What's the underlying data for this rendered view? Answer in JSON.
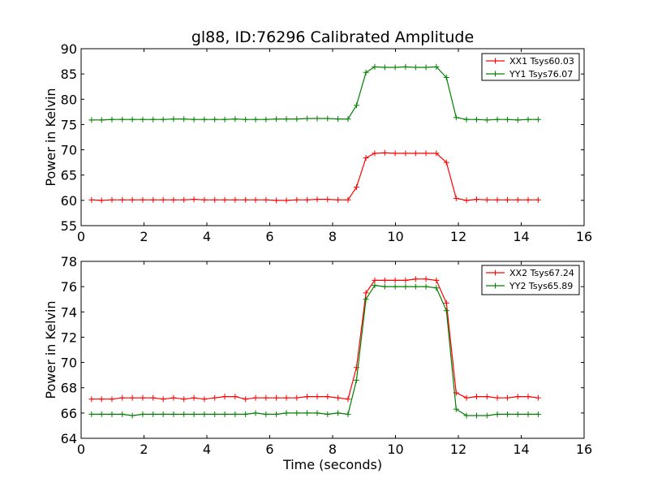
{
  "chart_data": [
    {
      "type": "line",
      "title": "gl88, ID:76296 Calibrated Amplitude",
      "xlabel": "",
      "ylabel": "Power in Kelvin",
      "xlim": [
        0,
        16
      ],
      "ylim": [
        55,
        90
      ],
      "xticks": [
        "0",
        "2",
        "4",
        "6",
        "8",
        "10",
        "12",
        "14",
        "16"
      ],
      "yticks": [
        "55",
        "60",
        "65",
        "70",
        "75",
        "80",
        "85",
        "90"
      ],
      "legend_position": "top-right",
      "x": [
        0.33,
        0.65,
        0.98,
        1.31,
        1.63,
        1.96,
        2.29,
        2.61,
        2.94,
        3.27,
        3.59,
        3.92,
        4.25,
        4.57,
        4.9,
        5.23,
        5.55,
        5.88,
        6.21,
        6.53,
        6.86,
        7.19,
        7.51,
        7.84,
        8.17,
        8.49,
        8.76,
        9.06,
        9.34,
        9.66,
        9.99,
        10.32,
        10.64,
        10.97,
        11.3,
        11.62,
        11.93,
        12.26,
        12.58,
        12.91,
        13.24,
        13.56,
        13.89,
        14.22,
        14.54
      ],
      "series": [
        {
          "name": "XX1 Tsys60.03",
          "color": "#ff0000",
          "values": [
            60.1,
            60.0,
            60.1,
            60.1,
            60.1,
            60.1,
            60.1,
            60.1,
            60.1,
            60.1,
            60.2,
            60.1,
            60.1,
            60.1,
            60.1,
            60.1,
            60.1,
            60.1,
            60.0,
            60.0,
            60.1,
            60.1,
            60.2,
            60.2,
            60.1,
            60.1,
            62.6,
            68.4,
            69.3,
            69.4,
            69.3,
            69.3,
            69.3,
            69.3,
            69.3,
            67.5,
            60.4,
            60.0,
            60.2,
            60.1,
            60.1,
            60.1,
            60.1,
            60.1,
            60.1
          ]
        },
        {
          "name": "YY1 Tsys76.07",
          "color": "#008000",
          "values": [
            75.9,
            75.9,
            76.0,
            76.0,
            76.0,
            76.0,
            76.0,
            76.0,
            76.1,
            76.1,
            76.0,
            76.0,
            76.0,
            76.0,
            76.1,
            76.0,
            76.0,
            76.0,
            76.1,
            76.1,
            76.1,
            76.2,
            76.2,
            76.2,
            76.1,
            76.1,
            78.8,
            85.3,
            86.4,
            86.3,
            86.3,
            86.4,
            86.3,
            86.3,
            86.4,
            84.3,
            76.4,
            76.0,
            76.0,
            75.9,
            76.0,
            76.0,
            75.9,
            76.0,
            76.0
          ]
        }
      ]
    },
    {
      "type": "line",
      "title": "",
      "xlabel": "Time (seconds)",
      "ylabel": "Power in Kelvin",
      "xlim": [
        0,
        16
      ],
      "ylim": [
        64,
        78
      ],
      "xticks": [
        "0",
        "2",
        "4",
        "6",
        "8",
        "10",
        "12",
        "14",
        "16"
      ],
      "yticks": [
        "64",
        "66",
        "68",
        "70",
        "72",
        "74",
        "76",
        "78"
      ],
      "legend_position": "top-right",
      "x": [
        0.33,
        0.65,
        0.98,
        1.31,
        1.63,
        1.96,
        2.29,
        2.61,
        2.94,
        3.27,
        3.59,
        3.92,
        4.25,
        4.57,
        4.9,
        5.23,
        5.55,
        5.88,
        6.21,
        6.53,
        6.86,
        7.19,
        7.51,
        7.84,
        8.17,
        8.49,
        8.76,
        9.06,
        9.34,
        9.66,
        9.99,
        10.32,
        10.64,
        10.97,
        11.3,
        11.62,
        11.93,
        12.26,
        12.58,
        12.91,
        13.24,
        13.56,
        13.89,
        14.22,
        14.54
      ],
      "series": [
        {
          "name": "XX2 Tsys67.24",
          "color": "#ff0000",
          "values": [
            67.1,
            67.1,
            67.1,
            67.2,
            67.2,
            67.2,
            67.2,
            67.1,
            67.2,
            67.1,
            67.2,
            67.1,
            67.2,
            67.3,
            67.3,
            67.1,
            67.2,
            67.2,
            67.2,
            67.2,
            67.2,
            67.3,
            67.3,
            67.3,
            67.2,
            67.1,
            69.6,
            75.5,
            76.5,
            76.5,
            76.5,
            76.5,
            76.6,
            76.6,
            76.5,
            74.7,
            67.6,
            67.2,
            67.3,
            67.3,
            67.2,
            67.2,
            67.3,
            67.3,
            67.2
          ]
        },
        {
          "name": "YY2 Tsys65.89",
          "color": "#008000",
          "values": [
            65.9,
            65.9,
            65.9,
            65.9,
            65.8,
            65.9,
            65.9,
            65.9,
            65.9,
            65.9,
            65.9,
            65.9,
            65.9,
            65.9,
            65.9,
            65.9,
            66.0,
            65.9,
            65.9,
            66.0,
            66.0,
            66.0,
            66.0,
            65.9,
            66.0,
            65.9,
            68.6,
            75.0,
            76.1,
            76.0,
            76.0,
            76.0,
            76.0,
            76.0,
            75.9,
            74.1,
            66.3,
            65.8,
            65.8,
            65.8,
            65.9,
            65.9,
            65.9,
            65.9,
            65.9
          ]
        }
      ]
    }
  ]
}
